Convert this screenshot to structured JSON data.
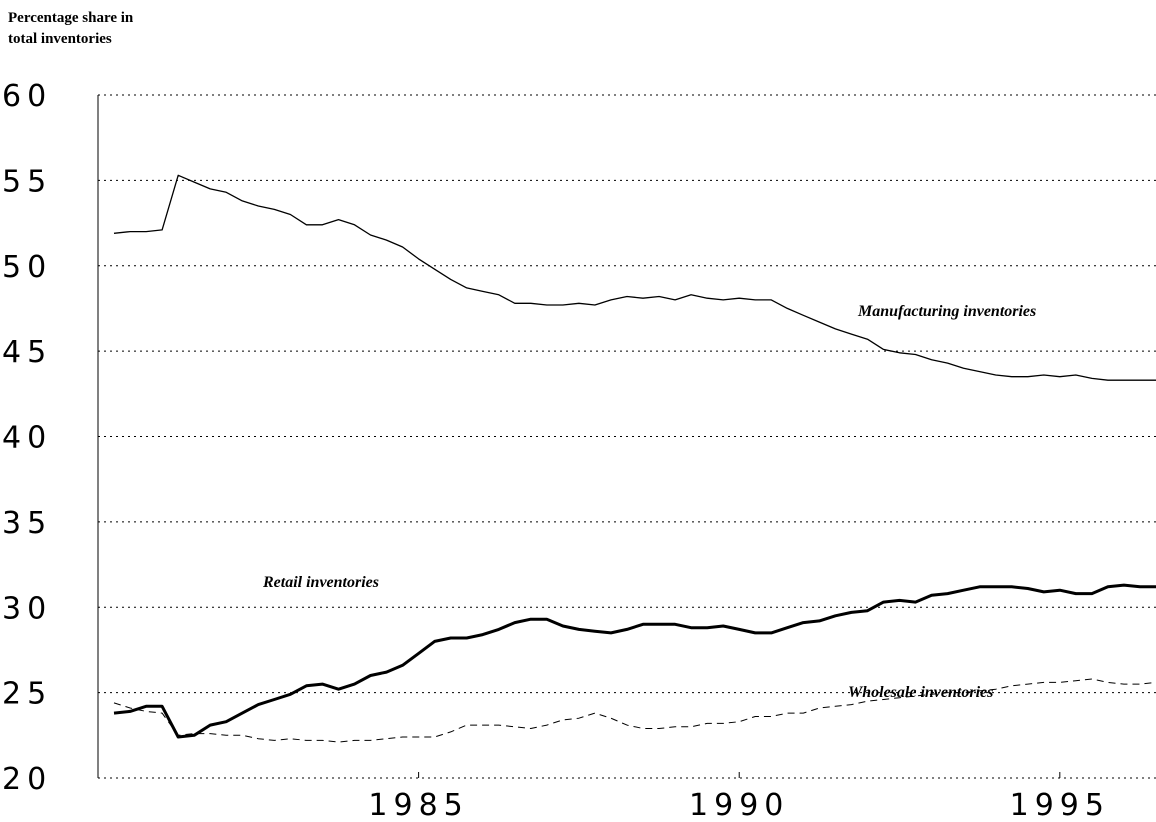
{
  "chart_data": {
    "type": "line",
    "y_label": [
      "Percentage share in",
      "total inventories"
    ],
    "annotations": [
      "Manufacturing inventories",
      "Retail inventories",
      "Wholesale inventories"
    ],
    "x": [
      1980.25,
      1980.5,
      1980.75,
      1981,
      1981.25,
      1981.5,
      1981.75,
      1982,
      1982.25,
      1982.5,
      1982.75,
      1983,
      1983.25,
      1983.5,
      1983.75,
      1984,
      1984.25,
      1984.5,
      1984.75,
      1985,
      1985.25,
      1985.5,
      1985.75,
      1986,
      1986.25,
      1986.5,
      1986.75,
      1987,
      1987.25,
      1987.5,
      1987.75,
      1988,
      1988.25,
      1988.5,
      1988.75,
      1989,
      1989.25,
      1989.5,
      1989.75,
      1990,
      1990.25,
      1990.5,
      1990.75,
      1991,
      1991.25,
      1991.5,
      1991.75,
      1992,
      1992.25,
      1992.5,
      1992.75,
      1993,
      1993.25,
      1993.5,
      1993.75,
      1994,
      1994.25,
      1994.5,
      1994.75,
      1995,
      1995.25,
      1995.5,
      1995.75,
      1996,
      1996.25,
      1996.5
    ],
    "series": [
      {
        "name": "Manufacturing inventories",
        "color": "#000000",
        "linestyle": "solid",
        "linewidth": 1.3,
        "values": [
          51.9,
          52.0,
          52.0,
          52.1,
          55.3,
          54.9,
          54.5,
          54.3,
          53.8,
          53.5,
          53.3,
          53.0,
          52.4,
          52.4,
          52.7,
          52.4,
          51.8,
          51.5,
          51.1,
          50.4,
          49.8,
          49.2,
          48.7,
          48.5,
          48.3,
          47.8,
          47.8,
          47.7,
          47.7,
          47.8,
          47.7,
          48.0,
          48.2,
          48.1,
          48.2,
          48.0,
          48.3,
          48.1,
          48.0,
          48.1,
          48.0,
          48.0,
          47.5,
          47.1,
          46.7,
          46.3,
          46.0,
          45.7,
          45.1,
          44.9,
          44.8,
          44.5,
          44.3,
          44.0,
          43.8,
          43.6,
          43.5,
          43.5,
          43.6,
          43.5,
          43.6,
          43.4,
          43.3,
          43.3,
          43.3,
          43.3
        ]
      },
      {
        "name": "Retail inventories",
        "color": "#000000",
        "linestyle": "solid",
        "linewidth": 3,
        "values": [
          23.8,
          23.9,
          24.2,
          24.2,
          22.4,
          22.5,
          23.1,
          23.3,
          23.8,
          24.3,
          24.6,
          24.9,
          25.4,
          25.5,
          25.2,
          25.5,
          26.0,
          26.2,
          26.6,
          27.3,
          28.0,
          28.2,
          28.2,
          28.4,
          28.7,
          29.1,
          29.3,
          29.3,
          28.9,
          28.7,
          28.6,
          28.5,
          28.7,
          29.0,
          29.0,
          29.0,
          28.8,
          28.8,
          28.9,
          28.7,
          28.5,
          28.5,
          28.8,
          29.1,
          29.2,
          29.5,
          29.7,
          29.8,
          30.3,
          30.4,
          30.3,
          30.7,
          30.8,
          31.0,
          31.2,
          31.2,
          31.2,
          31.1,
          30.9,
          31.0,
          30.8,
          30.8,
          31.2,
          31.3,
          31.2,
          31.2
        ]
      },
      {
        "name": "Wholesale inventories",
        "color": "#000000",
        "linestyle": "dashed",
        "linewidth": 1,
        "values": [
          24.4,
          24.1,
          23.9,
          23.8,
          22.5,
          22.6,
          22.6,
          22.5,
          22.5,
          22.3,
          22.2,
          22.3,
          22.2,
          22.2,
          22.1,
          22.2,
          22.2,
          22.3,
          22.4,
          22.4,
          22.4,
          22.7,
          23.1,
          23.1,
          23.1,
          23.0,
          22.9,
          23.1,
          23.4,
          23.5,
          23.8,
          23.5,
          23.1,
          22.9,
          22.9,
          23.0,
          23.0,
          23.2,
          23.2,
          23.3,
          23.6,
          23.6,
          23.8,
          23.8,
          24.1,
          24.2,
          24.3,
          24.5,
          24.6,
          24.7,
          24.8,
          24.9,
          25.0,
          25.0,
          25.1,
          25.2,
          25.4,
          25.5,
          25.6,
          25.6,
          25.7,
          25.8,
          25.6,
          25.5,
          25.5,
          25.6
        ]
      }
    ],
    "xlim": [
      1980,
      1996.5
    ],
    "xticks": [
      1985,
      1990,
      1995
    ],
    "ylim": [
      20,
      60
    ],
    "yticks": [
      20,
      25,
      30,
      35,
      40,
      45,
      50,
      55,
      60
    ],
    "grid": true
  }
}
